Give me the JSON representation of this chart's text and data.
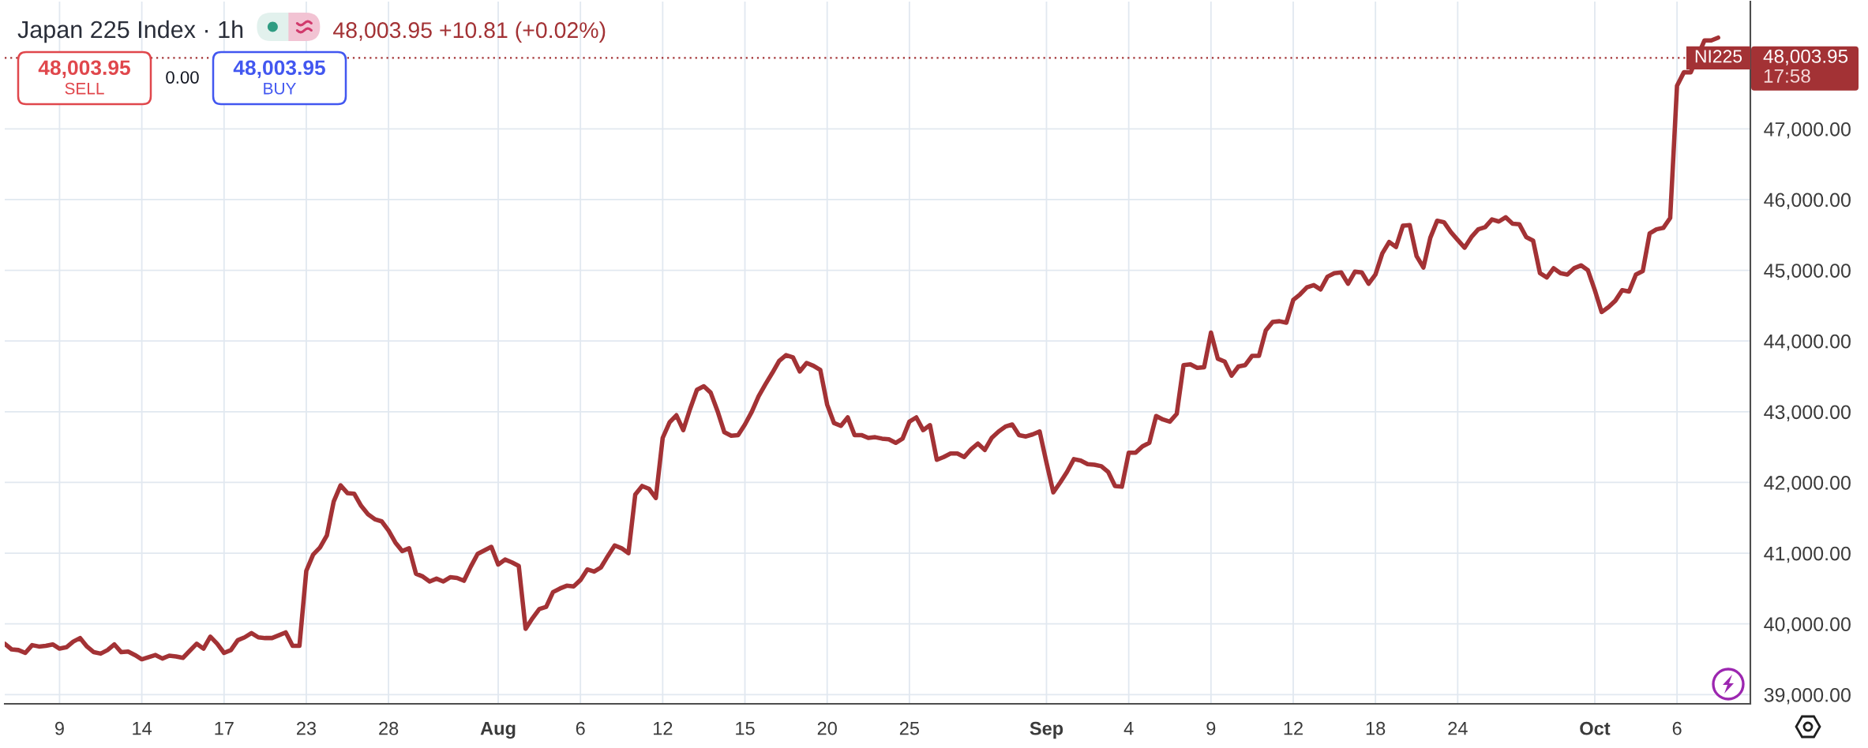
{
  "chart_data": {
    "type": "line",
    "title": "Japan 225 Index · 1h",
    "categories": [
      null,
      null,
      null,
      null,
      null,
      null,
      null,
      null,
      "9",
      null,
      null,
      null,
      null,
      null,
      null,
      null,
      null,
      null,
      null,
      null,
      "14",
      null,
      null,
      null,
      null,
      null,
      null,
      null,
      null,
      null,
      null,
      null,
      "17",
      null,
      null,
      null,
      null,
      null,
      null,
      null,
      null,
      null,
      null,
      null,
      "23",
      null,
      null,
      null,
      null,
      null,
      null,
      null,
      null,
      null,
      null,
      null,
      "28",
      null,
      null,
      null,
      null,
      null,
      null,
      null,
      null,
      null,
      null,
      null,
      null,
      null,
      null,
      null,
      "Aug",
      null,
      null,
      null,
      null,
      null,
      null,
      null,
      null,
      null,
      null,
      null,
      "6",
      null,
      null,
      null,
      null,
      null,
      null,
      null,
      null,
      null,
      null,
      null,
      "12",
      null,
      null,
      null,
      null,
      null,
      null,
      null,
      null,
      null,
      null,
      null,
      "15",
      null,
      null,
      null,
      null,
      null,
      null,
      null,
      null,
      null,
      null,
      null,
      "20",
      null,
      null,
      null,
      null,
      null,
      null,
      null,
      null,
      null,
      null,
      null,
      "25",
      null,
      null,
      null,
      null,
      null,
      null,
      null,
      null,
      null,
      null,
      null,
      null,
      null,
      null,
      null,
      null,
      null,
      null,
      null,
      "Sep",
      null,
      null,
      null,
      null,
      null,
      null,
      null,
      null,
      null,
      null,
      null,
      "4",
      null,
      null,
      null,
      null,
      null,
      null,
      null,
      null,
      null,
      null,
      null,
      "9",
      null,
      null,
      null,
      null,
      null,
      null,
      null,
      null,
      null,
      null,
      null,
      "12",
      null,
      null,
      null,
      null,
      null,
      null,
      null,
      null,
      null,
      null,
      null,
      "18",
      null,
      null,
      null,
      null,
      null,
      null,
      null,
      null,
      null,
      null,
      null,
      "24",
      null,
      null,
      null,
      null,
      null,
      null,
      null,
      null,
      null,
      null,
      null,
      null,
      null,
      null,
      null,
      null,
      null,
      null,
      null,
      "Oct",
      null,
      null,
      null,
      null,
      null,
      null,
      null,
      null,
      null,
      null,
      null,
      "6",
      null,
      null,
      null,
      null,
      null,
      null
    ],
    "series": [
      {
        "color": "#a33235",
        "values": [
          39720,
          39640,
          39630,
          39590,
          39700,
          39680,
          39690,
          39710,
          39650,
          39670,
          39750,
          39800,
          39680,
          39600,
          39580,
          39630,
          39710,
          39600,
          39610,
          39560,
          39500,
          39530,
          39560,
          39510,
          39550,
          39540,
          39520,
          39620,
          39720,
          39650,
          39820,
          39720,
          39590,
          39630,
          39770,
          39810,
          39870,
          39810,
          39800,
          39800,
          39840,
          39880,
          39690,
          39690,
          40750,
          40980,
          41080,
          41250,
          41730,
          41960,
          41850,
          41840,
          41670,
          41550,
          41480,
          41450,
          41320,
          41150,
          41030,
          41070,
          40710,
          40670,
          40600,
          40640,
          40600,
          40660,
          40650,
          40610,
          40810,
          40990,
          41040,
          41090,
          40840,
          40910,
          40870,
          40820,
          39930,
          40080,
          40210,
          40240,
          40450,
          40500,
          40540,
          40530,
          40620,
          40770,
          40740,
          40800,
          40960,
          41110,
          41070,
          41000,
          41830,
          41950,
          41910,
          41780,
          42630,
          42850,
          42950,
          42740,
          43040,
          43310,
          43360,
          43270,
          43010,
          42710,
          42660,
          42670,
          42820,
          43000,
          43220,
          43390,
          43550,
          43720,
          43800,
          43770,
          43570,
          43690,
          43650,
          43590,
          43100,
          42840,
          42800,
          42920,
          42670,
          42670,
          42630,
          42640,
          42620,
          42610,
          42560,
          42620,
          42860,
          42920,
          42740,
          42810,
          42320,
          42360,
          42410,
          42410,
          42360,
          42470,
          42550,
          42460,
          42630,
          42720,
          42790,
          42820,
          42670,
          42650,
          42680,
          42720,
          42280,
          41860,
          42000,
          42150,
          42330,
          42310,
          42260,
          42250,
          42230,
          42150,
          41950,
          41940,
          42420,
          42420,
          42510,
          42560,
          42940,
          42890,
          42860,
          42970,
          43660,
          43670,
          43620,
          43630,
          44120,
          43750,
          43710,
          43510,
          43640,
          43660,
          43790,
          43790,
          44150,
          44270,
          44280,
          44260,
          44580,
          44660,
          44760,
          44790,
          44730,
          44910,
          44960,
          44970,
          44810,
          44980,
          44970,
          44810,
          44940,
          45240,
          45400,
          45330,
          45630,
          45640,
          45200,
          45040,
          45460,
          45700,
          45680,
          45540,
          45430,
          45320,
          45470,
          45580,
          45610,
          45720,
          45690,
          45750,
          45660,
          45650,
          45470,
          45420,
          44960,
          44900,
          45030,
          44960,
          44940,
          45030,
          45070,
          45000,
          44720,
          44410,
          44480,
          44570,
          44720,
          44700,
          44940,
          44990,
          45520,
          45580,
          45600,
          45740,
          47610,
          47800,
          47800,
          null,
          48250,
          48250,
          48290
        ]
      }
    ],
    "ylim": [
      38870,
      48800
    ],
    "yticks": [
      {
        "value": 39000,
        "label": "39,000.00"
      },
      {
        "value": 40000,
        "label": "40,000.00"
      },
      {
        "value": 41000,
        "label": "41,000.00"
      },
      {
        "value": 42000,
        "label": "42,000.00"
      },
      {
        "value": 43000,
        "label": "43,000.00"
      },
      {
        "value": 44000,
        "label": "44,000.00"
      },
      {
        "value": 45000,
        "label": "45,000.00"
      },
      {
        "value": 46000,
        "label": "46,000.00"
      },
      {
        "value": 47000,
        "label": "47,000.00"
      }
    ],
    "grid": true,
    "line_style": "solid",
    "ref_lines": [
      {
        "axis": "y",
        "value": 48003.95,
        "label": "48,003.95",
        "color": "#a33235",
        "line_style": "dotted"
      }
    ],
    "annotations": [
      "48,003.95 +10.81 (+0.02%)",
      "48,003.95",
      "SELL",
      "0.00",
      "48,003.95",
      "BUY",
      "NI225",
      "17:58"
    ]
  }
}
